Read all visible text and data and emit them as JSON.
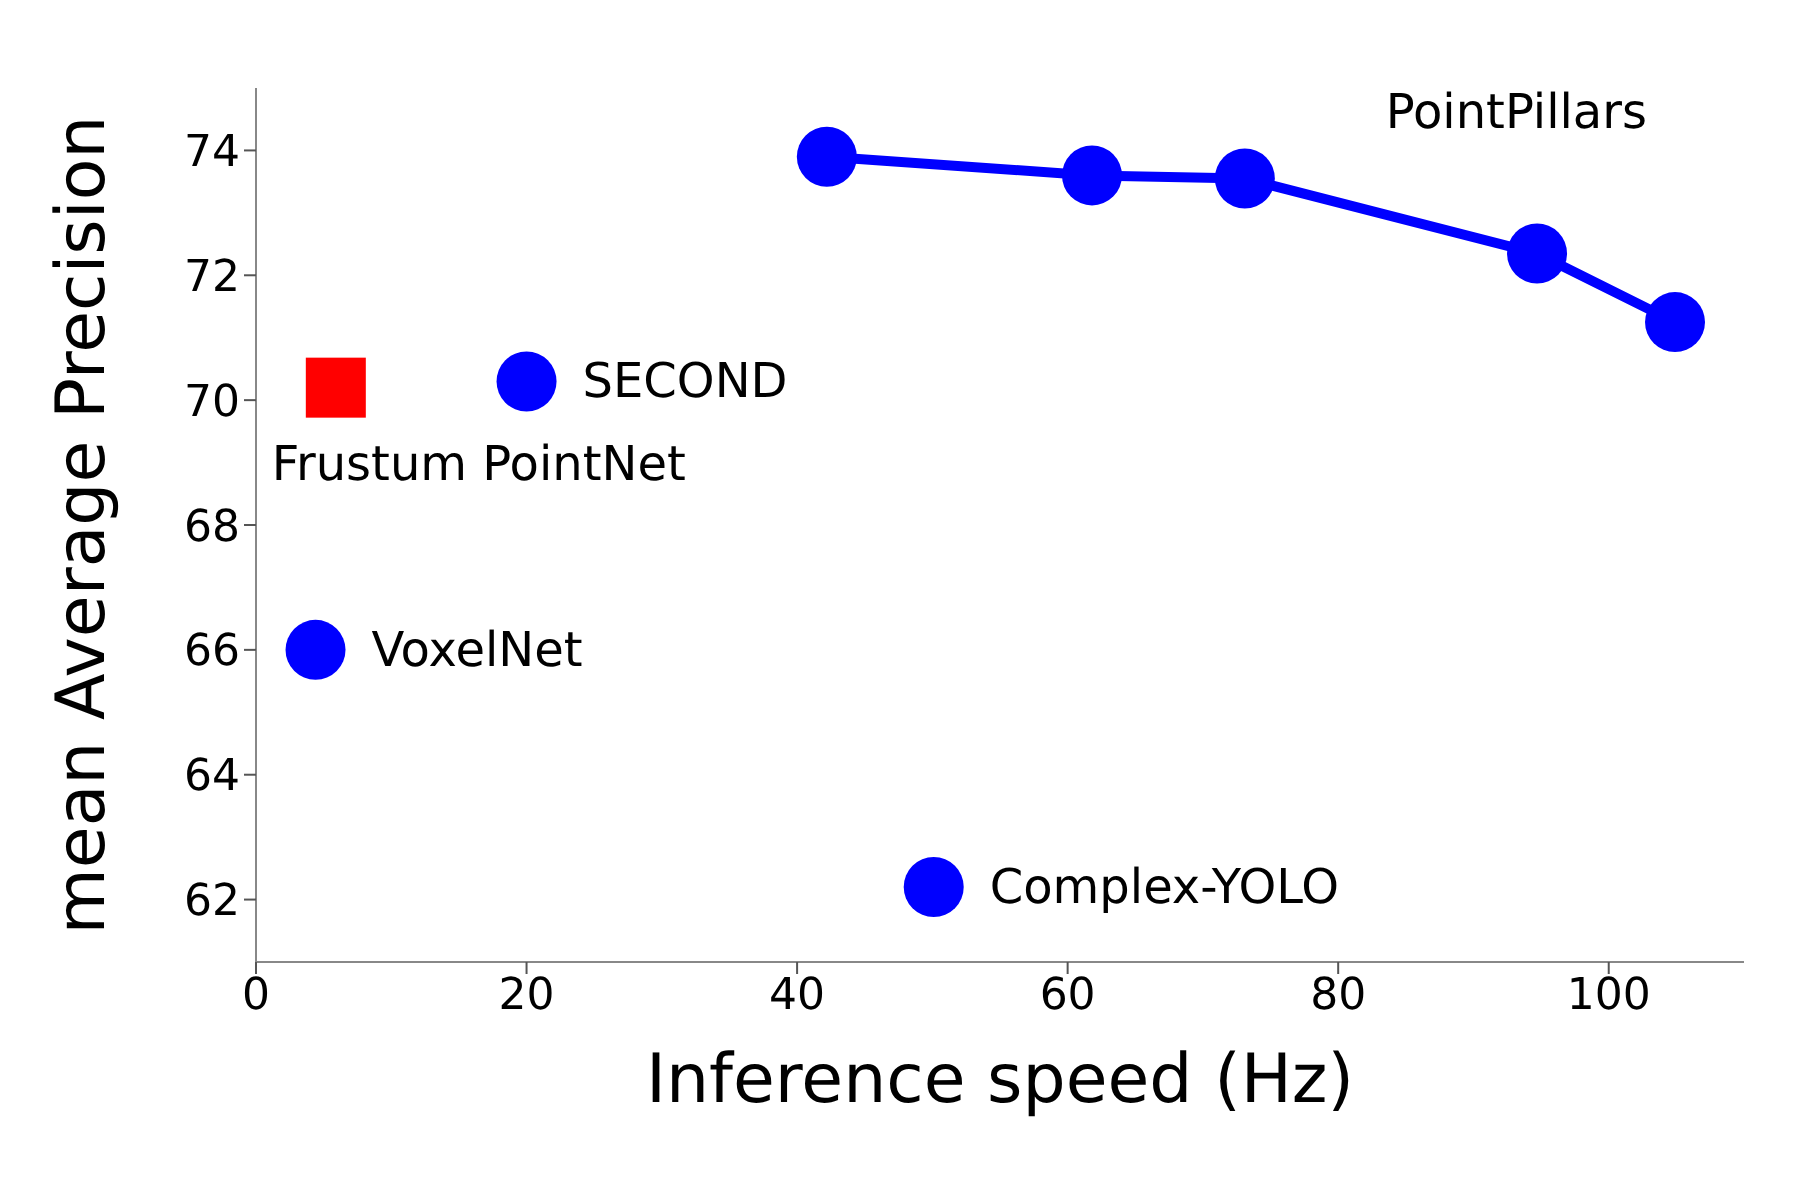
{
  "chart_data": {
    "type": "scatter",
    "xlabel": "Inference speed (Hz)",
    "ylabel": "mean Average Precision",
    "xlim": [
      0,
      110
    ],
    "ylim": [
      61,
      75
    ],
    "xticks": [
      0,
      20,
      40,
      60,
      80,
      100
    ],
    "yticks": [
      62,
      64,
      66,
      68,
      70,
      72,
      74
    ],
    "grid": false,
    "legend": false,
    "series": [
      {
        "name": "PointPillars",
        "type": "line",
        "marker": "circle",
        "color": "#0000ff",
        "x": [
          42.2,
          61.8,
          73.1,
          94.7,
          104.9
        ],
        "values": [
          73.9,
          73.6,
          73.55,
          72.35,
          71.25
        ]
      },
      {
        "name": "SECOND",
        "marker": "circle",
        "color": "#0000ff",
        "x": [
          20
        ],
        "values": [
          70.3
        ]
      },
      {
        "name": "Frustum PointNet",
        "marker": "square",
        "color": "#ff0000",
        "x": [
          5.9
        ],
        "values": [
          70.2
        ]
      },
      {
        "name": "VoxelNet",
        "marker": "circle",
        "color": "#0000ff",
        "x": [
          4.4
        ],
        "values": [
          66.0
        ]
      },
      {
        "name": "Complex-YOLO",
        "marker": "circle",
        "color": "#0000ff",
        "x": [
          50.1
        ],
        "values": [
          62.2
        ]
      }
    ]
  }
}
